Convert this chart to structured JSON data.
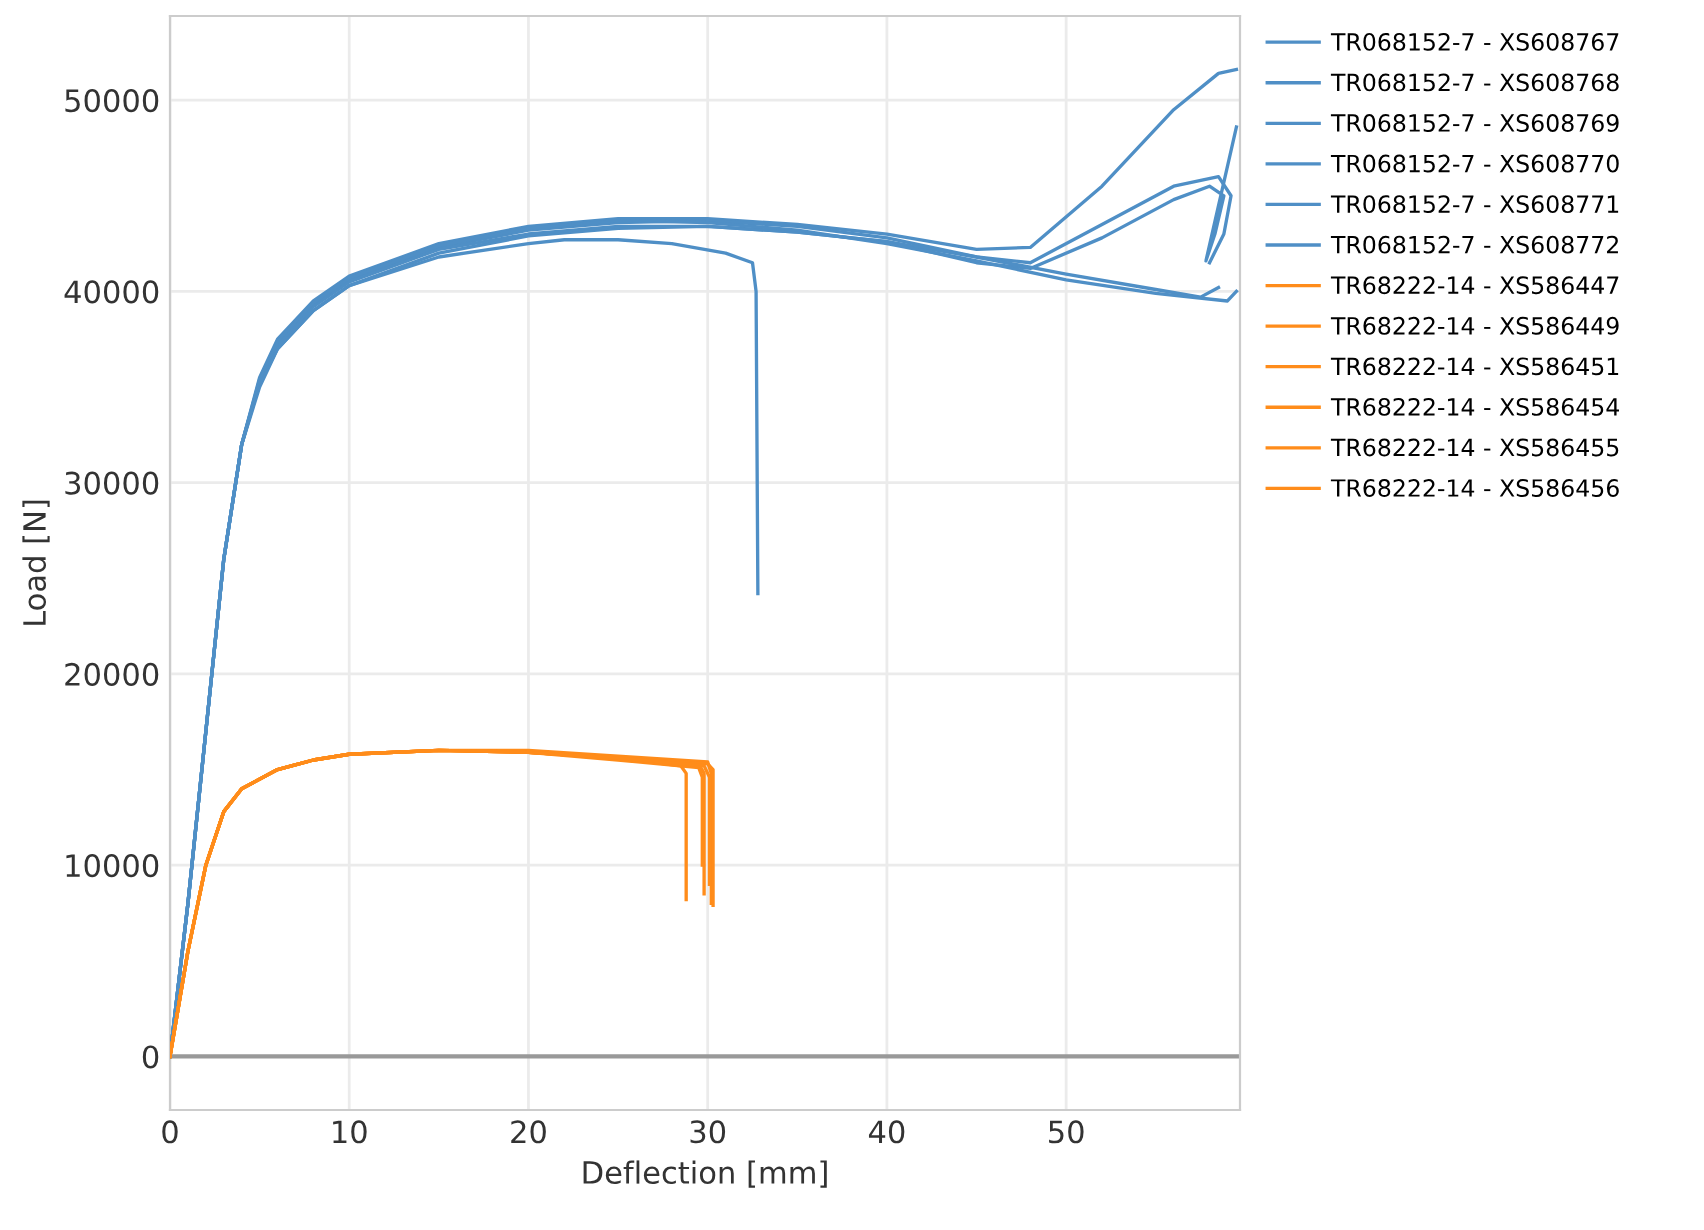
{
  "chart_data": {
    "type": "line",
    "xlabel": "Deflection [mm]",
    "ylabel": "Load [N]",
    "xlim": [
      0,
      59.7
    ],
    "ylim": [
      -2800,
      54400
    ],
    "xticks": [
      0,
      10,
      20,
      30,
      40,
      50
    ],
    "yticks": [
      0,
      10000,
      20000,
      30000,
      40000,
      50000
    ],
    "grid": true,
    "legend": "right",
    "marker": "none",
    "line_style": "solid",
    "ref_lines": [
      {
        "axis": "y",
        "value": 0,
        "color": "#999999"
      }
    ],
    "series": [
      {
        "name": "TR068152-7 - XS608767",
        "color": "#4f8fc6",
        "x": [
          0,
          1,
          2,
          3,
          4,
          5,
          6,
          8,
          10,
          15,
          20,
          25,
          30,
          35,
          40,
          45,
          48,
          52,
          56,
          58.5,
          59.5
        ],
        "values": [
          0,
          8000,
          17000,
          26000,
          32000,
          35500,
          37500,
          39500,
          40800,
          42500,
          43400,
          43800,
          43800,
          43500,
          43000,
          42200,
          42300,
          45500,
          49500,
          51400,
          51600
        ]
      },
      {
        "name": "TR068152-7 - XS608768",
        "color": "#4f8fc6",
        "x": [
          0,
          1,
          2,
          3,
          4,
          5,
          6,
          8,
          10,
          15,
          20,
          25,
          30,
          35,
          40,
          45,
          48,
          52,
          56,
          58.5,
          59.2,
          58.8,
          58.0
        ],
        "values": [
          0,
          8000,
          17000,
          26000,
          32000,
          35300,
          37300,
          39300,
          40600,
          42300,
          43200,
          43600,
          43700,
          43400,
          42800,
          41800,
          41500,
          43500,
          45500,
          46000,
          45000,
          43000,
          41500
        ]
      },
      {
        "name": "TR068152-7 - XS608769",
        "color": "#4f8fc6",
        "x": [
          0,
          1,
          2,
          3,
          4,
          5,
          6,
          8,
          10,
          15,
          20,
          25,
          30,
          35,
          40,
          45,
          48,
          52,
          56,
          58.0,
          58.8,
          58.3,
          57.8,
          59.5
        ],
        "values": [
          0,
          8000,
          17000,
          26000,
          32000,
          35000,
          37000,
          39000,
          40300,
          42000,
          42900,
          43300,
          43400,
          43100,
          42600,
          41500,
          41200,
          42800,
          44800,
          45500,
          45000,
          43000,
          41600,
          48600
        ]
      },
      {
        "name": "TR068152-7 - XS608770",
        "color": "#4f8fc6",
        "x": [
          0,
          1,
          2,
          3,
          4,
          5,
          6,
          8,
          10,
          15,
          20,
          25,
          30,
          35,
          40,
          45,
          50,
          55,
          57.5,
          58.5
        ],
        "values": [
          0,
          8000,
          17000,
          26000,
          32000,
          35300,
          37200,
          39200,
          40500,
          42200,
          43000,
          43400,
          43400,
          43100,
          42600,
          41800,
          40900,
          40100,
          39700,
          40200
        ]
      },
      {
        "name": "TR068152-7 - XS608771",
        "color": "#4f8fc6",
        "x": [
          0,
          1,
          2,
          3,
          4,
          5,
          6,
          8,
          10,
          15,
          20,
          22,
          25,
          28,
          31,
          32.5,
          32.7,
          32.8
        ],
        "values": [
          0,
          8000,
          17000,
          26000,
          32000,
          35200,
          37000,
          39000,
          40300,
          41800,
          42500,
          42700,
          42700,
          42500,
          42000,
          41500,
          40000,
          24200
        ]
      },
      {
        "name": "TR068152-7 - XS608772",
        "color": "#4f8fc6",
        "x": [
          0,
          1,
          2,
          3,
          4,
          5,
          6,
          8,
          10,
          15,
          20,
          25,
          30,
          35,
          40,
          45,
          50,
          55,
          59.0,
          59.5
        ],
        "values": [
          0,
          8000,
          17000,
          26000,
          32000,
          35400,
          37400,
          39400,
          40700,
          42400,
          43300,
          43700,
          43600,
          43200,
          42500,
          41600,
          40600,
          39900,
          39500,
          40000
        ]
      },
      {
        "name": "TR68222-14 - XS586447",
        "color": "#ff8c1a",
        "x": [
          0,
          1,
          2,
          3,
          4,
          6,
          8,
          10,
          15,
          20,
          25,
          28.5,
          28.8,
          28.8
        ],
        "values": [
          0,
          5500,
          10000,
          12800,
          14000,
          15000,
          15500,
          15800,
          16000,
          15900,
          15600,
          15200,
          14800,
          8200
        ]
      },
      {
        "name": "TR68222-14 - XS586449",
        "color": "#ff8c1a",
        "x": [
          0,
          1,
          2,
          3,
          4,
          6,
          8,
          10,
          15,
          20,
          25,
          29.5,
          29.8,
          29.8
        ],
        "values": [
          0,
          5500,
          10000,
          12800,
          14000,
          15000,
          15500,
          15800,
          16000,
          15900,
          15600,
          15300,
          14800,
          8500
        ]
      },
      {
        "name": "TR68222-14 - XS586451",
        "color": "#ff8c1a",
        "x": [
          0,
          1,
          2,
          3,
          4,
          6,
          8,
          10,
          15,
          20,
          25,
          30.0,
          30.2,
          30.2
        ],
        "values": [
          0,
          5500,
          10000,
          12800,
          14000,
          15000,
          15500,
          15800,
          16000,
          16000,
          15700,
          15400,
          14800,
          8000
        ]
      },
      {
        "name": "TR68222-14 - XS586454",
        "color": "#ff8c1a",
        "x": [
          0,
          1,
          2,
          3,
          4,
          6,
          8,
          10,
          15,
          20,
          25,
          30.0,
          30.3,
          30.3
        ],
        "values": [
          0,
          5500,
          10000,
          12800,
          14000,
          15000,
          15500,
          15800,
          16000,
          15900,
          15600,
          15300,
          15000,
          7900
        ]
      },
      {
        "name": "TR68222-14 - XS586455",
        "color": "#ff8c1a",
        "x": [
          0,
          1,
          2,
          3,
          4,
          6,
          8,
          10,
          15,
          20,
          25,
          29.5,
          29.7,
          29.7
        ],
        "values": [
          0,
          5500,
          10000,
          12800,
          14000,
          15000,
          15500,
          15800,
          16000,
          15900,
          15500,
          15100,
          14600,
          10000
        ]
      },
      {
        "name": "TR68222-14 - XS586456",
        "color": "#ff8c1a",
        "x": [
          0,
          1,
          2,
          3,
          4,
          6,
          8,
          10,
          15,
          20,
          25,
          29.8,
          30.1,
          30.1
        ],
        "values": [
          0,
          5500,
          10000,
          12800,
          14000,
          15000,
          15500,
          15800,
          16000,
          15900,
          15600,
          15200,
          14600,
          9000
        ]
      }
    ]
  }
}
